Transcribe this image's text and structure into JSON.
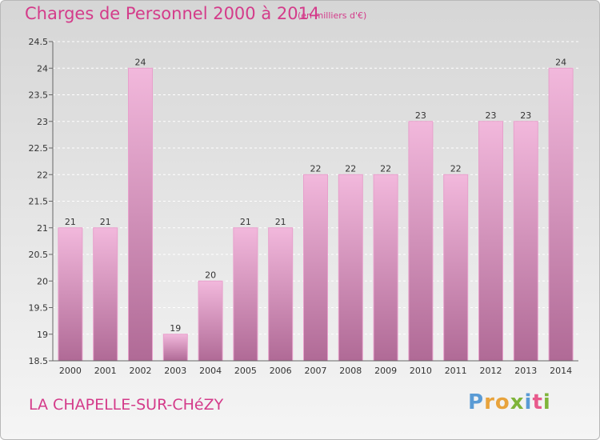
{
  "header": {
    "title": "Charges de Personnel 2000 à 2014",
    "subtitle": "(en milliers d'€)"
  },
  "footer": {
    "place": "LA CHAPELLE-SUR-CHéZY",
    "logo_letters": [
      "P",
      "r",
      "o",
      "x",
      "i",
      "t",
      "i"
    ]
  },
  "colors": {
    "title": "#d43b8a",
    "bar_light": "#f2b8dc",
    "bar_dark": "#b06a96",
    "logo_letters": [
      "#5a9bd5",
      "#e8a33c",
      "#e8a33c",
      "#7fb43a",
      "#5a9bd5",
      "#e85a8c",
      "#7fb43a"
    ]
  },
  "chart_data": {
    "type": "bar",
    "title": "Charges de Personnel 2000 à 2014",
    "subtitle": "(en milliers d'€)",
    "categories": [
      "2000",
      "2001",
      "2002",
      "2003",
      "2004",
      "2005",
      "2006",
      "2007",
      "2008",
      "2009",
      "2010",
      "2011",
      "2012",
      "2013",
      "2014"
    ],
    "values": [
      21,
      21,
      24,
      19,
      20,
      21,
      21,
      22,
      22,
      22,
      23,
      22,
      23,
      23,
      24
    ],
    "data_labels": [
      "21",
      "21",
      "24",
      "19",
      "20",
      "21",
      "21",
      "22",
      "22",
      "22",
      "23",
      "22",
      "23",
      "23",
      "24"
    ],
    "ylim": [
      18.5,
      24.5
    ],
    "yticks": [
      18.5,
      19,
      19.5,
      20,
      20.5,
      21,
      21.5,
      22,
      22.5,
      23,
      23.5,
      24,
      24.5
    ],
    "ytick_labels": [
      "18.5",
      "19",
      "19.5",
      "20",
      "20.5",
      "21",
      "21.5",
      "22",
      "22.5",
      "23",
      "23.5",
      "24",
      "24.5"
    ],
    "grid": true,
    "xlabel": "",
    "ylabel": ""
  }
}
